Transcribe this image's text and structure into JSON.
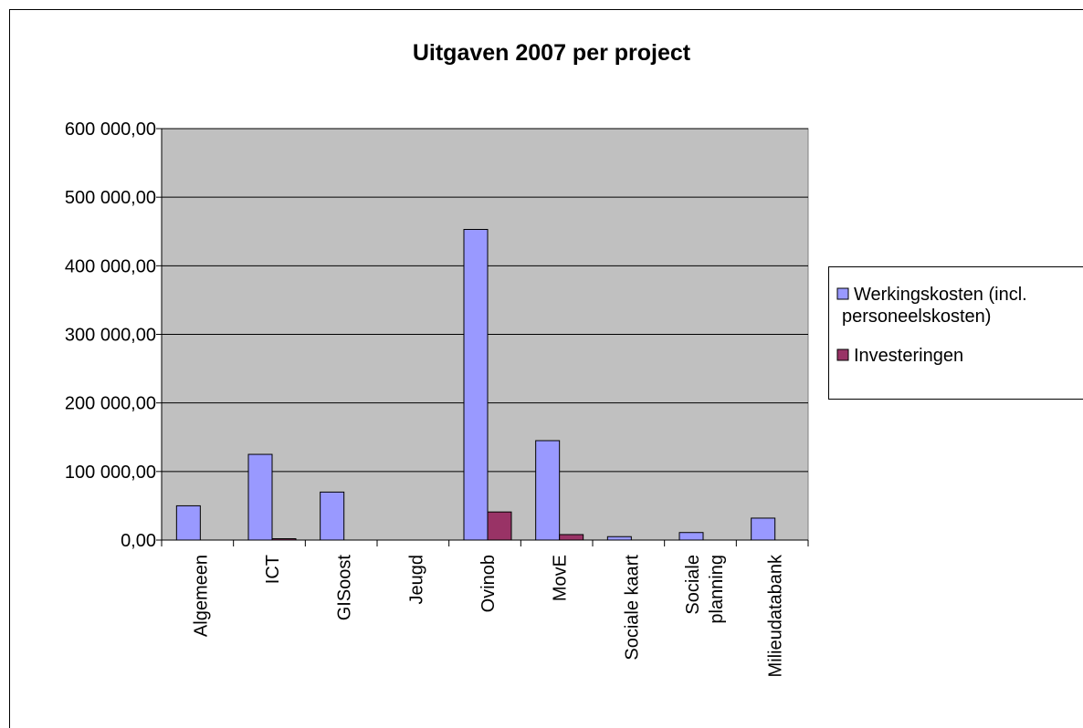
{
  "chart_data": {
    "type": "bar",
    "title": "Uitgaven 2007 per project",
    "categories": [
      "Algemeen",
      "ICT",
      "GISoost",
      "Jeugd",
      "Ovinob",
      "MovE",
      "Sociale kaart",
      "Sociale\nplanning",
      "Milieudatabank"
    ],
    "series": [
      {
        "name": "Werkingskosten (incl.\npersoneelskosten)",
        "color": "#9999ff",
        "values": [
          50000,
          125000,
          70000,
          0,
          453000,
          145000,
          5000,
          11000,
          32000
        ]
      },
      {
        "name": "Investeringen",
        "color": "#993366",
        "values": [
          0,
          2000,
          0,
          0,
          41000,
          8000,
          0,
          0,
          0
        ]
      }
    ],
    "ylim": [
      0,
      600000
    ],
    "yticks": [
      {
        "value": 0,
        "label": "0,00"
      },
      {
        "value": 100000,
        "label": "100 000,00"
      },
      {
        "value": 200000,
        "label": "200 000,00"
      },
      {
        "value": 300000,
        "label": "300 000,00"
      },
      {
        "value": 400000,
        "label": "400 000,00"
      },
      {
        "value": 500000,
        "label": "500 000,00"
      },
      {
        "value": 600000,
        "label": "600 000,00"
      }
    ],
    "grid": true,
    "legend": "right",
    "plot_background": "#c0c0c0"
  }
}
